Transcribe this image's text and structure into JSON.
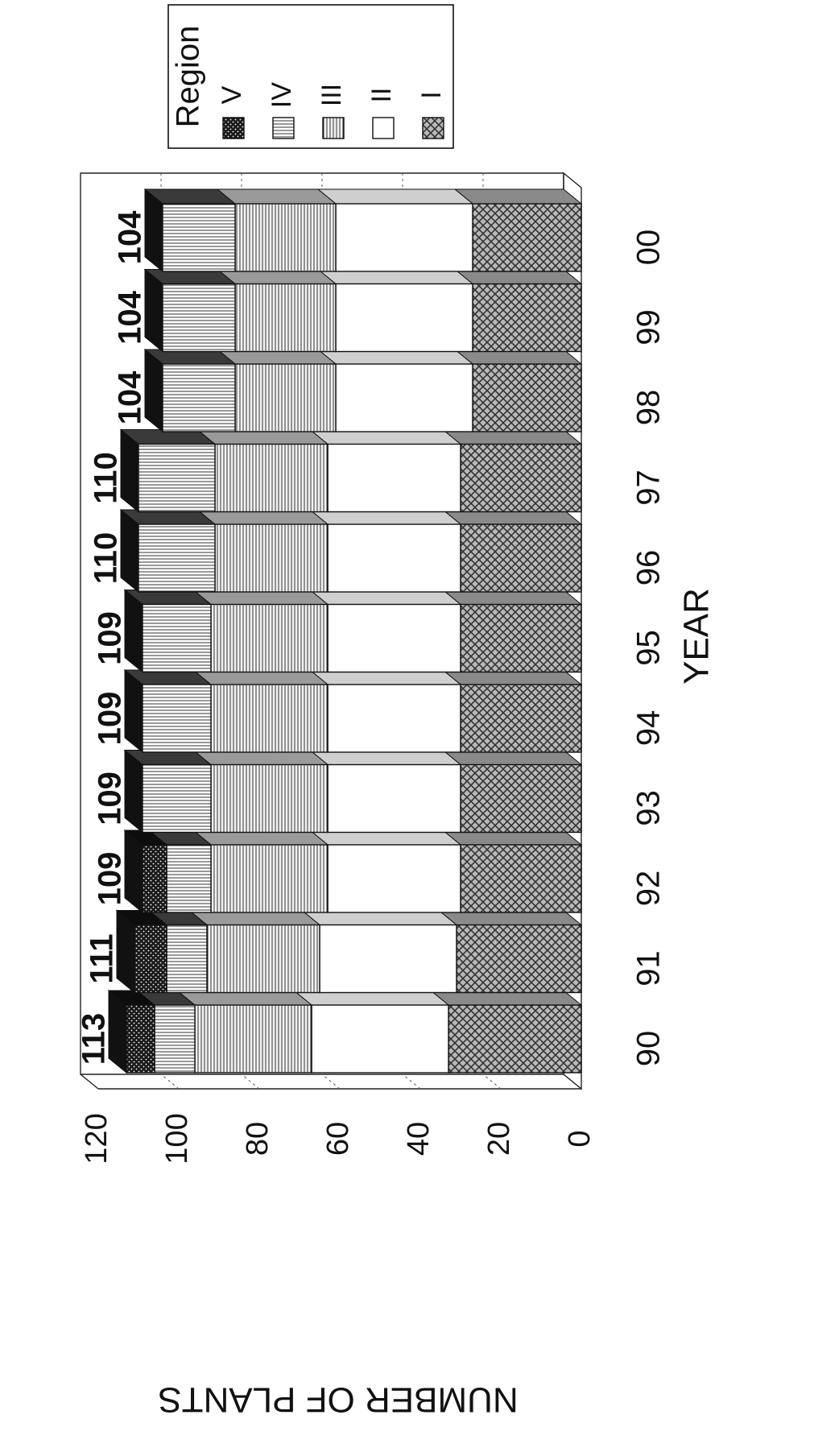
{
  "chart_data": {
    "type": "bar",
    "stacked": true,
    "three_d": true,
    "orientation": "rotated",
    "xlabel": "YEAR",
    "ylabel": "NUMBER OF PLANTS",
    "ylim": [
      0,
      120
    ],
    "yticks": [
      "0",
      "20",
      "40",
      "60",
      "80",
      "100",
      "120"
    ],
    "grid": true,
    "legend_position": "top-right",
    "legend_title": "Region",
    "categories": [
      "90",
      "91",
      "92",
      "93",
      "94",
      "95",
      "96",
      "97",
      "98",
      "99",
      "00"
    ],
    "series": [
      {
        "name": "I",
        "pattern": "crosshatch",
        "color": "#9a9a9a",
        "values": [
          33,
          31,
          30,
          30,
          30,
          30,
          30,
          30,
          27,
          27,
          27
        ]
      },
      {
        "name": "II",
        "pattern": "none",
        "color": "#ffffff",
        "values": [
          34,
          34,
          33,
          33,
          33,
          33,
          33,
          33,
          34,
          34,
          34
        ]
      },
      {
        "name": "III",
        "pattern": "vertical-lines",
        "color": "#dddddd",
        "values": [
          29,
          28,
          29,
          29,
          29,
          29,
          28,
          28,
          25,
          25,
          25
        ]
      },
      {
        "name": "IV",
        "pattern": "horizontal-lines",
        "color": "#ffffff",
        "values": [
          10,
          10,
          11,
          17,
          17,
          17,
          19,
          19,
          18,
          18,
          18
        ]
      },
      {
        "name": "V",
        "pattern": "dots",
        "color": "#2a2a2a",
        "values": [
          7,
          8,
          6,
          0,
          0,
          0,
          0,
          0,
          0,
          0,
          0
        ]
      }
    ],
    "totals": [
      "113",
      "111",
      "109",
      "109",
      "109",
      "109",
      "110",
      "110",
      "104",
      "104",
      "104"
    ]
  }
}
